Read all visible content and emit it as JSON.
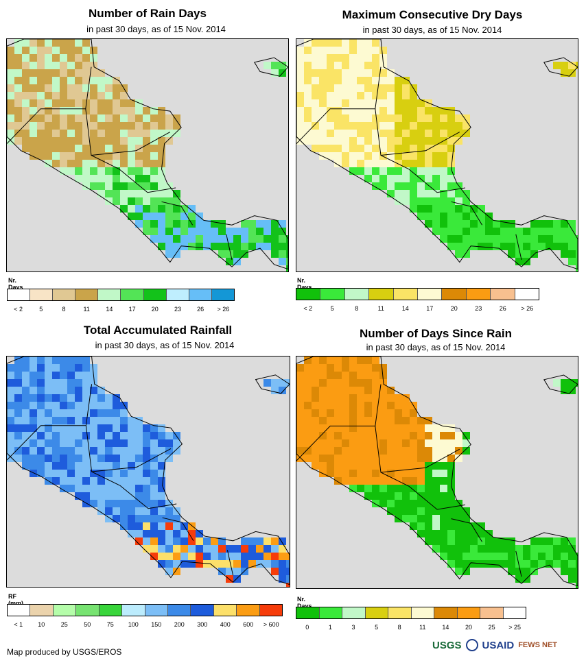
{
  "panels": [
    {
      "title": "Number of Rain Days",
      "subtitle": "in past 30 days, as of 15 Nov. 2014",
      "unit": "Nr. Days",
      "legend_colors": [
        "#ffffff",
        "#f8e4c6",
        "#e0c893",
        "#caa44a",
        "#c1f8c8",
        "#53e456",
        "#13c21a",
        "#bfeefe",
        "#66bef7",
        "#1497d6"
      ],
      "tick_labels": [
        "< 2",
        "5",
        "8",
        "11",
        "14",
        "17",
        "20",
        "23",
        "26",
        "> 26"
      ],
      "map_pattern": "rain-days"
    },
    {
      "title": "Maximum Consecutive Dry Days",
      "subtitle": "in past 30 days, as of 15 Nov. 2014",
      "unit": "Nr. Days",
      "legend_colors": [
        "#11c10b",
        "#3ae93a",
        "#c1f8c8",
        "#d8cf10",
        "#fae466",
        "#fdfad2",
        "#dc8906",
        "#fb9c12",
        "#f8c08f",
        "#ffffff"
      ],
      "tick_labels": [
        "< 2",
        "5",
        "8",
        "11",
        "14",
        "17",
        "20",
        "23",
        "26",
        "> 26"
      ],
      "map_pattern": "dry-days"
    },
    {
      "title": "Total Accumulated Rainfall",
      "subtitle": "in past 30 days, as of 15 Nov. 2014",
      "unit": "RF (mm)",
      "legend_colors": [
        "#ffffff",
        "#ebd3ac",
        "#b5fdaa",
        "#77e371",
        "#39d53b",
        "#bcecfd",
        "#7cbef6",
        "#3c8ae8",
        "#1e5cdc",
        "#fce06a",
        "#fb9d14",
        "#f63c0a"
      ],
      "tick_labels": [
        "< 1",
        "10",
        "25",
        "50",
        "75",
        "100",
        "150",
        "200",
        "300",
        "400",
        "600",
        "> 600"
      ],
      "map_pattern": "rainfall"
    },
    {
      "title": "Number of Days Since Rain",
      "subtitle": "in past 30 days, as of 15 Nov. 2014",
      "unit": "Nr. Days",
      "legend_colors": [
        "#11c10b",
        "#3ae93a",
        "#c1f8c8",
        "#d8cf10",
        "#fae466",
        "#fdfad2",
        "#dc8906",
        "#fb9c12",
        "#f8c08f",
        "#ffffff"
      ],
      "tick_labels": [
        "0",
        "1",
        "3",
        "5",
        "8",
        "11",
        "14",
        "20",
        "25",
        "> 25"
      ],
      "map_pattern": "days-since-rain"
    }
  ],
  "footer": {
    "credit": "Map produced by USGS/EROS",
    "logo_usgs": "USGS",
    "logo_usaid": "USAID",
    "logo_fews": "FEWS NET"
  },
  "colors": {
    "ocean": "#dcdcdc",
    "border": "#000000"
  }
}
